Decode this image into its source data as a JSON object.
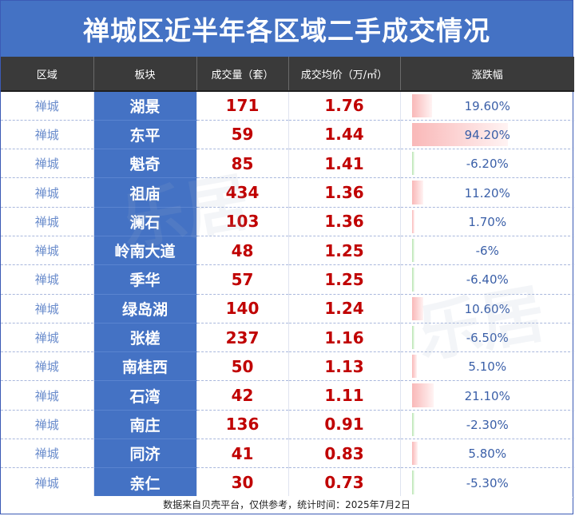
{
  "title": "禅城区近半年各区域二手成交情况",
  "table": {
    "headers": [
      "区域",
      "板块",
      "成交量（套）",
      "成交均价（万/㎡）",
      "涨跌幅"
    ],
    "rows": [
      {
        "district": "禅城",
        "block": "湖景",
        "volume": "171",
        "price": "1.76",
        "change": "19.60%",
        "change_value": 19.6
      },
      {
        "district": "禅城",
        "block": "东平",
        "volume": "59",
        "price": "1.44",
        "change": "94.20%",
        "change_value": 94.2
      },
      {
        "district": "禅城",
        "block": "魁奇",
        "volume": "85",
        "price": "1.41",
        "change": "-6.20%",
        "change_value": -6.2
      },
      {
        "district": "禅城",
        "block": "祖庙",
        "volume": "434",
        "price": "1.36",
        "change": "11.20%",
        "change_value": 11.2
      },
      {
        "district": "禅城",
        "block": "澜石",
        "volume": "103",
        "price": "1.36",
        "change": "1.70%",
        "change_value": 1.7
      },
      {
        "district": "禅城",
        "block": "岭南大道",
        "volume": "48",
        "price": "1.25",
        "change": "-6%",
        "change_value": -6.0
      },
      {
        "district": "禅城",
        "block": "季华",
        "volume": "57",
        "price": "1.25",
        "change": "-6.40%",
        "change_value": -6.4
      },
      {
        "district": "禅城",
        "block": "绿岛湖",
        "volume": "140",
        "price": "1.24",
        "change": "10.60%",
        "change_value": 10.6
      },
      {
        "district": "禅城",
        "block": "张槎",
        "volume": "237",
        "price": "1.16",
        "change": "-6.50%",
        "change_value": -6.5
      },
      {
        "district": "禅城",
        "block": "南桂西",
        "volume": "50",
        "price": "1.13",
        "change": "5.10%",
        "change_value": 5.1
      },
      {
        "district": "禅城",
        "block": "石湾",
        "volume": "42",
        "price": "1.11",
        "change": "21.10%",
        "change_value": 21.1
      },
      {
        "district": "禅城",
        "block": "南庄",
        "volume": "136",
        "price": "0.91",
        "change": "-2.30%",
        "change_value": -2.3
      },
      {
        "district": "禅城",
        "block": "同济",
        "volume": "41",
        "price": "0.83",
        "change": "5.80%",
        "change_value": 5.8
      },
      {
        "district": "禅城",
        "block": "亲仁",
        "volume": "30",
        "price": "0.73",
        "change": "-5.30%",
        "change_value": -5.3
      }
    ]
  },
  "footer": "数据来自贝壳平台，仅供参考，统计时间：2025年7月2日",
  "watermark": "乐居"
}
